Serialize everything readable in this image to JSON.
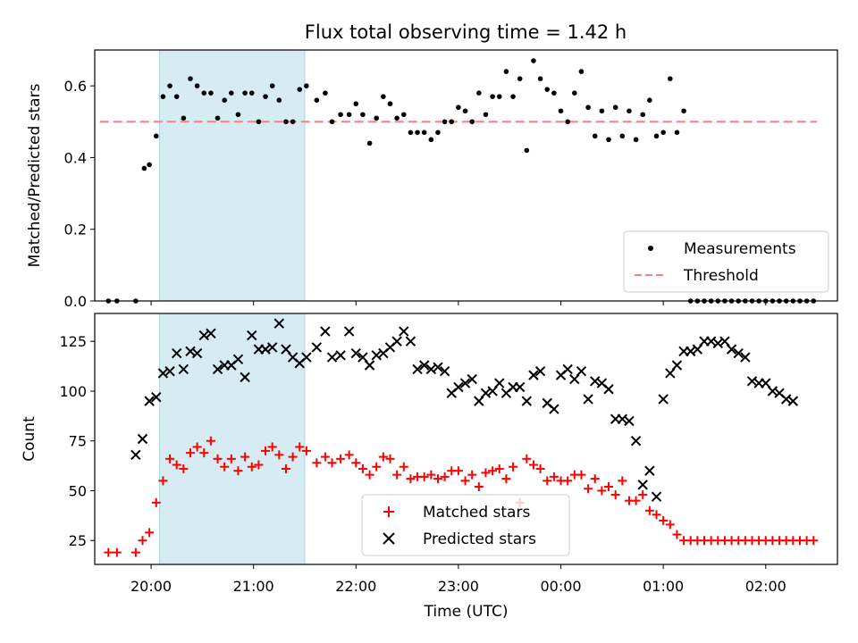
{
  "title": "Flux total observing time = 1.42 h",
  "colors": {
    "shade": "#add8e6",
    "measurement": "#000000",
    "threshold": "#ff7f7f",
    "matched": "#ff0000",
    "predicted": "#000000"
  },
  "chart_data": [
    {
      "type": "scatter",
      "ylabel": "Matched/Predicted stars",
      "ylim": [
        0,
        0.7
      ],
      "yticks": [
        0.0,
        0.2,
        0.4,
        0.6
      ],
      "ytick_labels": [
        "0.0",
        "0.2",
        "0.4",
        "0.6"
      ],
      "xlim": [
        "19:27",
        "02:42"
      ],
      "shaded_interval": [
        "20:05",
        "21:30"
      ],
      "legend_position": "lower right",
      "series": [
        {
          "name": "Measurements",
          "marker": "dot",
          "x": [
            "19:35",
            "19:40",
            "19:51",
            "19:56",
            "19:59",
            "20:03",
            "20:07",
            "20:11",
            "20:15",
            "20:19",
            "20:23",
            "20:27",
            "20:31",
            "20:35",
            "20:39",
            "20:43",
            "20:47",
            "20:51",
            "20:55",
            "20:59",
            "21:03",
            "21:07",
            "21:11",
            "21:15",
            "21:19",
            "21:23",
            "21:27",
            "21:31",
            "21:37",
            "21:42",
            "21:46",
            "21:51",
            "21:56",
            "22:00",
            "22:04",
            "22:08",
            "22:12",
            "22:16",
            "22:20",
            "22:24",
            "22:28",
            "22:32",
            "22:36",
            "22:40",
            "22:44",
            "22:48",
            "22:52",
            "22:56",
            "23:00",
            "23:04",
            "23:08",
            "23:12",
            "23:16",
            "23:20",
            "23:24",
            "23:28",
            "23:32",
            "23:36",
            "23:40",
            "23:44",
            "23:48",
            "23:52",
            "23:56",
            "00:00",
            "00:04",
            "00:08",
            "00:12",
            "00:16",
            "00:20",
            "00:24",
            "00:28",
            "00:32",
            "00:36",
            "00:40",
            "00:44",
            "00:48",
            "00:52",
            "00:56",
            "01:00",
            "01:04",
            "01:08",
            "01:12",
            "01:16",
            "01:20",
            "01:24",
            "01:28",
            "01:32",
            "01:36",
            "01:40",
            "01:44",
            "01:48",
            "01:52",
            "01:56",
            "02:00",
            "02:04",
            "02:08",
            "02:12",
            "02:16",
            "02:20",
            "02:24",
            "02:28"
          ],
          "y": [
            0.0,
            0.0,
            0.0,
            0.37,
            0.38,
            0.46,
            0.57,
            0.6,
            0.57,
            0.51,
            0.62,
            0.6,
            0.58,
            0.58,
            0.51,
            0.56,
            0.58,
            0.52,
            0.58,
            0.58,
            0.5,
            0.57,
            0.6,
            0.56,
            0.5,
            0.5,
            0.59,
            0.6,
            0.56,
            0.58,
            0.5,
            0.52,
            0.52,
            0.55,
            0.52,
            0.44,
            0.51,
            0.57,
            0.55,
            0.51,
            0.52,
            0.47,
            0.47,
            0.47,
            0.45,
            0.47,
            0.5,
            0.5,
            0.54,
            0.53,
            0.5,
            0.58,
            0.52,
            0.57,
            0.57,
            0.64,
            0.57,
            0.62,
            0.42,
            0.67,
            0.62,
            0.59,
            0.58,
            0.53,
            0.5,
            0.58,
            0.64,
            0.54,
            0.46,
            0.53,
            0.45,
            0.54,
            0.46,
            0.53,
            0.45,
            0.52,
            0.56,
            0.46,
            0.47,
            0.62,
            0.47,
            0.53,
            0.0,
            0.0,
            0.0,
            0.0,
            0.0,
            0.0,
            0.0,
            0.0,
            0.0,
            0.0,
            0.0,
            0.0,
            0.0,
            0.0,
            0.0,
            0.0,
            0.0,
            0.0,
            0.0
          ]
        },
        {
          "name": "Threshold",
          "marker": "dashed-line",
          "x": [
            "19:30",
            "02:30"
          ],
          "y": [
            0.5,
            0.5
          ]
        }
      ]
    },
    {
      "type": "scatter",
      "ylabel": "Count",
      "xlabel": "Time (UTC)",
      "ylim": [
        13,
        139
      ],
      "yticks": [
        25,
        50,
        75,
        100,
        125
      ],
      "ytick_labels": [
        "25",
        "50",
        "75",
        "100",
        "125"
      ],
      "xlim": [
        "19:27",
        "02:42"
      ],
      "xticks": [
        "20:00",
        "21:00",
        "22:00",
        "23:00",
        "00:00",
        "01:00",
        "02:00"
      ],
      "xtick_labels": [
        "20:00",
        "21:00",
        "22:00",
        "23:00",
        "00:00",
        "01:00",
        "02:00"
      ],
      "shaded_interval": [
        "20:05",
        "21:30"
      ],
      "legend_position": "lower center",
      "series": [
        {
          "name": "Matched stars",
          "marker": "plus",
          "x": [
            "19:35",
            "19:40",
            "19:51",
            "19:55",
            "19:59",
            "20:03",
            "20:07",
            "20:11",
            "20:15",
            "20:19",
            "20:23",
            "20:27",
            "20:31",
            "20:35",
            "20:39",
            "20:43",
            "20:47",
            "20:51",
            "20:55",
            "20:59",
            "21:03",
            "21:07",
            "21:11",
            "21:15",
            "21:19",
            "21:23",
            "21:27",
            "21:31",
            "21:37",
            "21:42",
            "21:46",
            "21:51",
            "21:56",
            "22:00",
            "22:04",
            "22:08",
            "22:12",
            "22:16",
            "22:20",
            "22:24",
            "22:28",
            "22:32",
            "22:36",
            "22:40",
            "22:44",
            "22:48",
            "22:52",
            "22:56",
            "23:00",
            "23:04",
            "23:08",
            "23:12",
            "23:16",
            "23:20",
            "23:24",
            "23:28",
            "23:32",
            "23:36",
            "23:40",
            "23:44",
            "23:48",
            "23:52",
            "23:56",
            "00:00",
            "00:04",
            "00:08",
            "00:12",
            "00:16",
            "00:20",
            "00:24",
            "00:28",
            "00:32",
            "00:36",
            "00:40",
            "00:44",
            "00:48",
            "00:52",
            "00:56",
            "01:00",
            "01:04",
            "01:08",
            "01:12",
            "01:16",
            "01:20",
            "01:24",
            "01:28",
            "01:32",
            "01:36",
            "01:40",
            "01:44",
            "01:48",
            "01:52",
            "01:56",
            "02:00",
            "02:04",
            "02:08",
            "02:12",
            "02:16",
            "02:20",
            "02:24",
            "02:28"
          ],
          "y": [
            19,
            19,
            19,
            25,
            29,
            44,
            55,
            66,
            63,
            61,
            69,
            72,
            69,
            75,
            66,
            62,
            66,
            60,
            67,
            62,
            63,
            70,
            72,
            68,
            61,
            67,
            72,
            70,
            64,
            67,
            64,
            66,
            68,
            64,
            61,
            58,
            62,
            67,
            66,
            58,
            62,
            56,
            57,
            57,
            58,
            56,
            57,
            60,
            60,
            55,
            58,
            52,
            59,
            60,
            61,
            56,
            62,
            44,
            66,
            63,
            61,
            55,
            57,
            55,
            55,
            58,
            58,
            51,
            56,
            50,
            52,
            48,
            55,
            45,
            45,
            48,
            40,
            38,
            35,
            33,
            28,
            25,
            25,
            25,
            25,
            25,
            25,
            25,
            25,
            25,
            25,
            25,
            25,
            25,
            25,
            25,
            25,
            25,
            25,
            25,
            25
          ]
        },
        {
          "name": "Predicted stars",
          "marker": "x",
          "x": [
            "19:51",
            "19:55",
            "19:59",
            "20:03",
            "20:07",
            "20:11",
            "20:15",
            "20:19",
            "20:23",
            "20:27",
            "20:31",
            "20:35",
            "20:39",
            "20:43",
            "20:47",
            "20:51",
            "20:55",
            "20:59",
            "21:03",
            "21:07",
            "21:11",
            "21:15",
            "21:19",
            "21:23",
            "21:27",
            "21:31",
            "21:37",
            "21:42",
            "21:46",
            "21:51",
            "21:56",
            "22:00",
            "22:04",
            "22:08",
            "22:12",
            "22:16",
            "22:20",
            "22:24",
            "22:28",
            "22:32",
            "22:36",
            "22:40",
            "22:44",
            "22:48",
            "22:52",
            "22:56",
            "23:00",
            "23:04",
            "23:08",
            "23:12",
            "23:16",
            "23:20",
            "23:24",
            "23:28",
            "23:32",
            "23:36",
            "23:40",
            "23:44",
            "23:48",
            "23:52",
            "23:56",
            "00:00",
            "00:04",
            "00:08",
            "00:12",
            "00:16",
            "00:20",
            "00:24",
            "00:28",
            "00:32",
            "00:36",
            "00:40",
            "00:44",
            "00:48",
            "00:52",
            "00:56",
            "01:00",
            "01:04",
            "01:08",
            "01:12",
            "01:16",
            "01:20",
            "01:24",
            "01:28",
            "01:32",
            "01:36",
            "01:40",
            "01:44",
            "01:48",
            "01:52",
            "01:56",
            "02:00",
            "02:04",
            "02:08",
            "02:12",
            "02:16"
          ],
          "y": [
            68,
            76,
            95,
            97,
            109,
            110,
            119,
            111,
            120,
            119,
            128,
            129,
            111,
            113,
            113,
            116,
            107,
            128,
            121,
            121,
            122,
            134,
            121,
            117,
            114,
            117,
            122,
            130,
            117,
            118,
            130,
            119,
            117,
            113,
            118,
            119,
            122,
            125,
            130,
            125,
            111,
            113,
            111,
            112,
            110,
            99,
            102,
            104,
            106,
            95,
            99,
            100,
            104,
            99,
            102,
            102,
            95,
            108,
            110,
            94,
            91,
            108,
            111,
            106,
            110,
            96,
            105,
            104,
            101,
            86,
            86,
            85,
            75,
            53,
            60,
            47,
            96,
            109,
            113,
            120,
            120,
            121,
            125,
            125,
            124,
            125,
            121,
            119,
            117,
            105,
            104,
            104,
            100,
            99,
            96,
            95
          ]
        }
      ]
    }
  ]
}
